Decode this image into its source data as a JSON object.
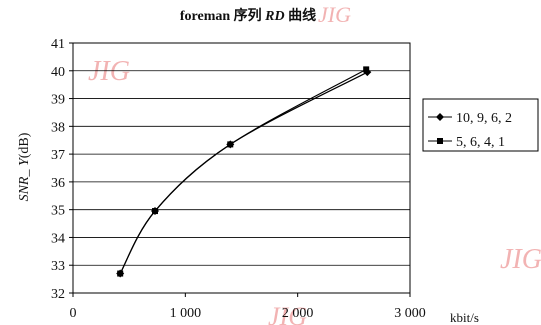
{
  "chart_data": {
    "type": "line",
    "title": "foreman 序列 RD 曲线",
    "title_parts": {
      "prefix": "foreman 序列 ",
      "italic": "RD",
      "suffix": " 曲线"
    },
    "xlabel": "kbit/s",
    "ylabel": "SNR_Y(dB)",
    "ylabel_parts": {
      "italic": "SNR_ Y",
      "suffix": "(dB)"
    },
    "xlim": [
      0,
      3000
    ],
    "ylim": [
      32,
      41
    ],
    "x_ticks": [
      0,
      1000,
      2000,
      3000
    ],
    "x_tick_labels": [
      "0",
      "1 000",
      "2 000",
      "3 000"
    ],
    "y_ticks": [
      32,
      33,
      34,
      35,
      36,
      37,
      38,
      39,
      40,
      41
    ],
    "grid": "horizontal",
    "legend_position": "right",
    "series": [
      {
        "name": "10, 9, 6, 2",
        "marker": "diamond",
        "x": [
          420,
          730,
          1400,
          2620
        ],
        "y": [
          32.7,
          34.95,
          37.35,
          39.95
        ]
      },
      {
        "name": "5, 6, 4, 1",
        "marker": "square",
        "x": [
          420,
          730,
          1400,
          2610
        ],
        "y": [
          32.7,
          34.95,
          37.35,
          40.05
        ]
      }
    ]
  },
  "watermark": "JIG"
}
